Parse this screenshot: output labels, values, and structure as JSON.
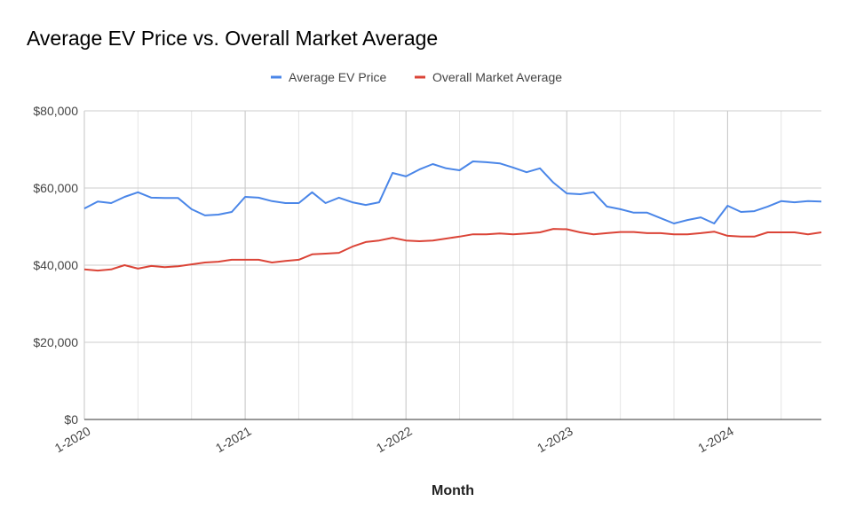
{
  "chart_data": {
    "type": "line",
    "title": "Average EV Price vs. Overall Market Average",
    "xlabel": "Month",
    "ylabel": "",
    "ylim": [
      0,
      80000
    ],
    "yticks": [
      "$0",
      "$20,000",
      "$40,000",
      "$60,000",
      "$80,000"
    ],
    "ytick_values": [
      0,
      20000,
      40000,
      60000,
      80000
    ],
    "xticks": [
      "1-2020",
      "1-2021",
      "1-2022",
      "1-2023",
      "1-2024"
    ],
    "x_start": "1-2020",
    "x_end": "8-2024",
    "grid": true,
    "legend_position": "top",
    "series": [
      {
        "name": "Average EV Price",
        "color": "#4a86e8",
        "values": [
          54700,
          56500,
          56100,
          57700,
          58900,
          57500,
          57400,
          57400,
          54500,
          52900,
          53100,
          53800,
          57700,
          57500,
          56600,
          56100,
          56100,
          58900,
          56100,
          57500,
          56300,
          55600,
          56300,
          63900,
          63000,
          64800,
          66200,
          65100,
          64600,
          66900,
          66700,
          66400,
          65300,
          64100,
          65100,
          61400,
          58600,
          58400,
          58900,
          55200,
          54500,
          53600,
          53600,
          52200,
          50800,
          51700,
          52400,
          50800,
          55400,
          53800,
          54000,
          55200,
          56600,
          56300,
          56600,
          56500
        ]
      },
      {
        "name": "Overall Market Average",
        "color": "#db4437",
        "values": [
          38900,
          38600,
          38900,
          40000,
          39100,
          39800,
          39500,
          39700,
          40200,
          40700,
          40900,
          41400,
          41400,
          41400,
          40700,
          41100,
          41400,
          42800,
          43000,
          43200,
          44800,
          46000,
          46400,
          47100,
          46400,
          46200,
          46400,
          46900,
          47400,
          48000,
          48000,
          48200,
          48000,
          48200,
          48500,
          49400,
          49300,
          48500,
          48000,
          48300,
          48600,
          48600,
          48300,
          48300,
          48000,
          48000,
          48300,
          48700,
          47600,
          47400,
          47400,
          48500,
          48500,
          48500,
          48000,
          48500
        ]
      }
    ]
  }
}
